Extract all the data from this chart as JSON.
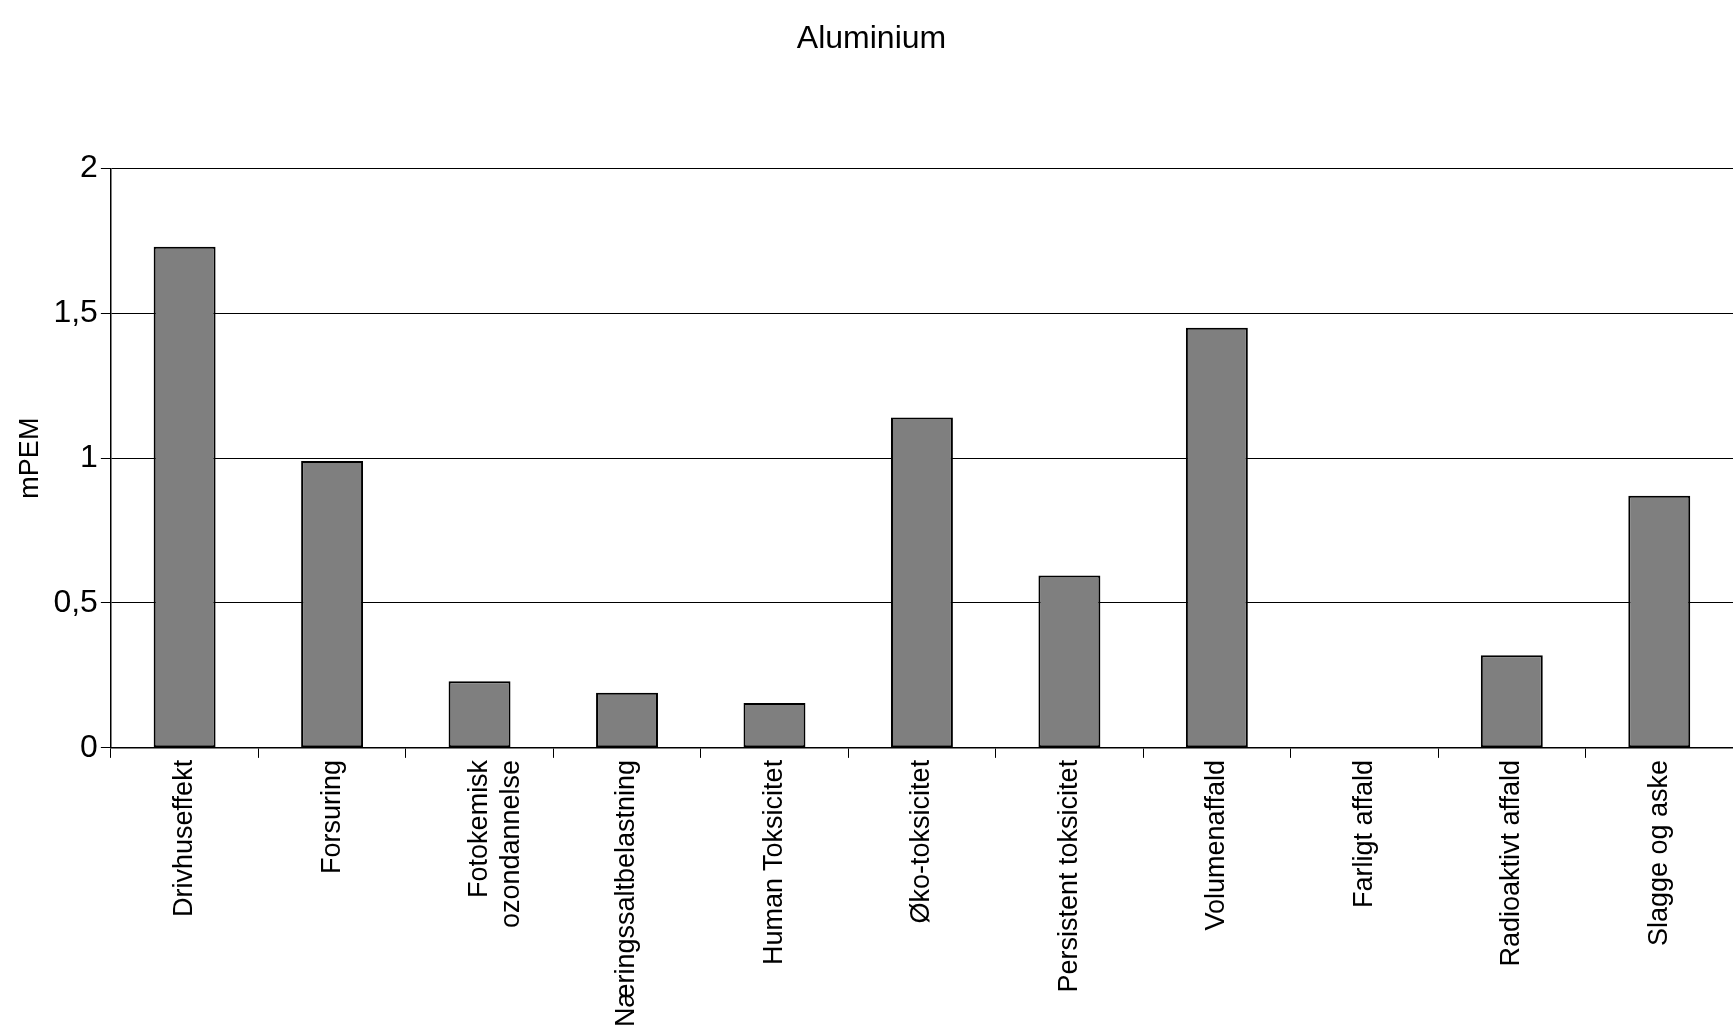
{
  "chart_data": {
    "type": "bar",
    "title": "Aluminium",
    "ylabel": "mPEM",
    "categories": [
      "Drivhuseffekt",
      "Forsuring",
      "Fotokemisk\nozondannelse",
      "Næringssaltbelastning",
      "Human Toksicitet",
      "Øko-toksicitet",
      "Persistent toksicitet",
      "Volumenaffald",
      "Farligt affald",
      "Radioaktivt affald",
      "Slagge og aske"
    ],
    "values": [
      1.73,
      0.99,
      0.23,
      0.19,
      0.155,
      1.14,
      0.595,
      1.45,
      0,
      0.32,
      0.87
    ],
    "color": "#7f7f7f",
    "ylim": [
      0,
      2
    ],
    "yticks": [
      {
        "value": 0,
        "label": "0"
      },
      {
        "value": 0.5,
        "label": "0,5"
      },
      {
        "value": 1,
        "label": "1"
      },
      {
        "value": 1.5,
        "label": "1,5"
      },
      {
        "value": 2,
        "label": "2"
      }
    ],
    "grid": "y",
    "legend": false
  }
}
